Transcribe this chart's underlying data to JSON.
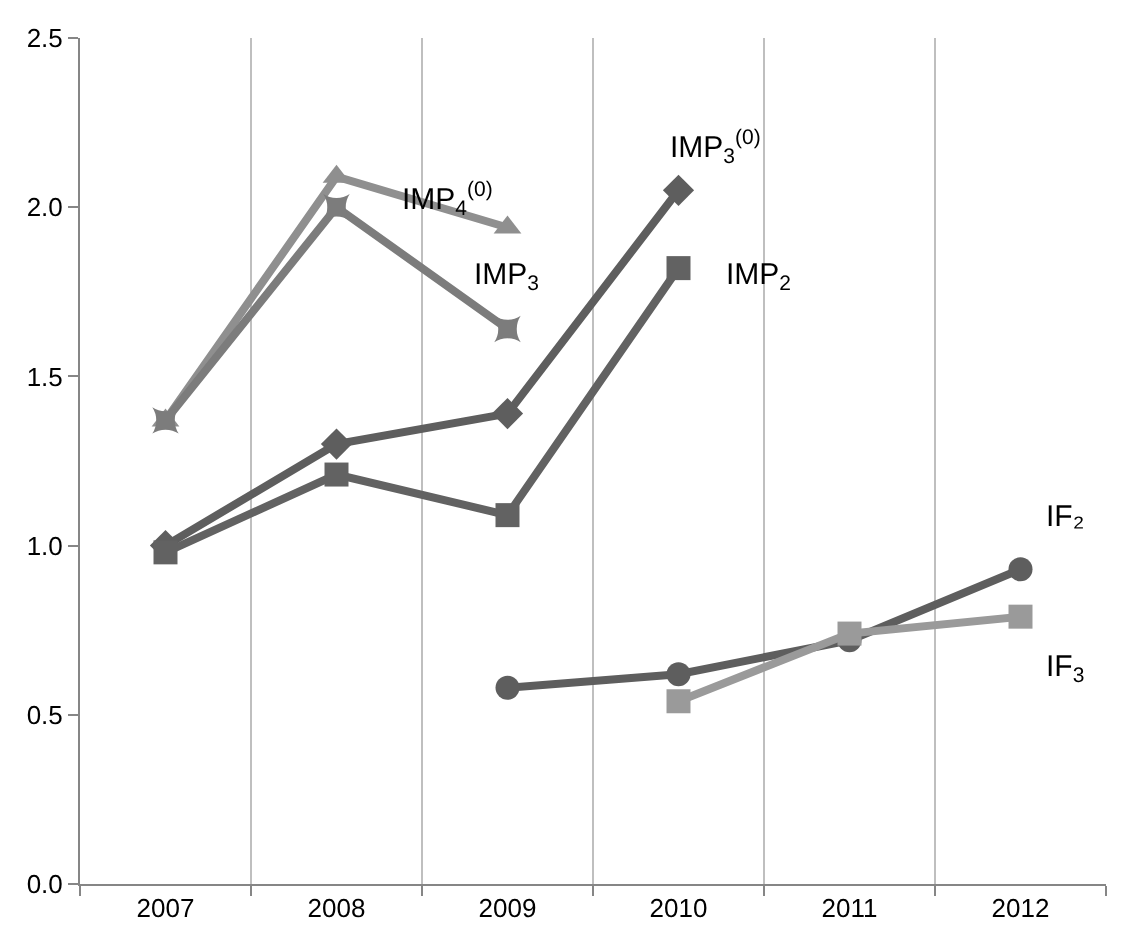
{
  "chart_data": {
    "type": "line",
    "categories": [
      "2007",
      "2008",
      "2009",
      "2010",
      "2011",
      "2012"
    ],
    "ylim": [
      0,
      2.5
    ],
    "yticks": [
      {
        "value": 0,
        "label": "0.0"
      },
      {
        "value": 0.5,
        "label": "0.5"
      },
      {
        "value": 1,
        "label": "1.0"
      },
      {
        "value": 1.5,
        "label": "1.5"
      },
      {
        "value": 2,
        "label": "2.0"
      },
      {
        "value": 2.5,
        "label": "2.5"
      }
    ],
    "grid": "x",
    "legend": false,
    "series": [
      {
        "name": "IMP$_{4}$$^{(0)}$",
        "color": "#8f8f8f",
        "marker": "triangle",
        "values": [
          1.37,
          2.09,
          1.94,
          null,
          null,
          null
        ]
      },
      {
        "name": "IMP$_{3}$",
        "color": "#7c7c7c",
        "marker": "star",
        "values": [
          1.37,
          2.0,
          1.64,
          null,
          null,
          null
        ]
      },
      {
        "name": "IMP$_{3}$$^{(0)}$",
        "color": "#5e5e5e",
        "marker": "diamond",
        "values": [
          1.0,
          1.3,
          1.39,
          2.05,
          null,
          null
        ]
      },
      {
        "name": "IMP$_{2}$",
        "color": "#626262",
        "marker": "square",
        "values": [
          0.98,
          1.21,
          1.09,
          1.82,
          null,
          null
        ]
      },
      {
        "name": "IF₂",
        "color": "#5e5e5e",
        "marker": "circle",
        "values": [
          null,
          null,
          0.58,
          0.62,
          0.72,
          0.93
        ]
      },
      {
        "name": "IF$_{3}$",
        "color": "#9a9a9a",
        "marker": "square",
        "values": [
          null,
          null,
          null,
          0.54,
          0.74,
          0.79
        ]
      }
    ]
  }
}
